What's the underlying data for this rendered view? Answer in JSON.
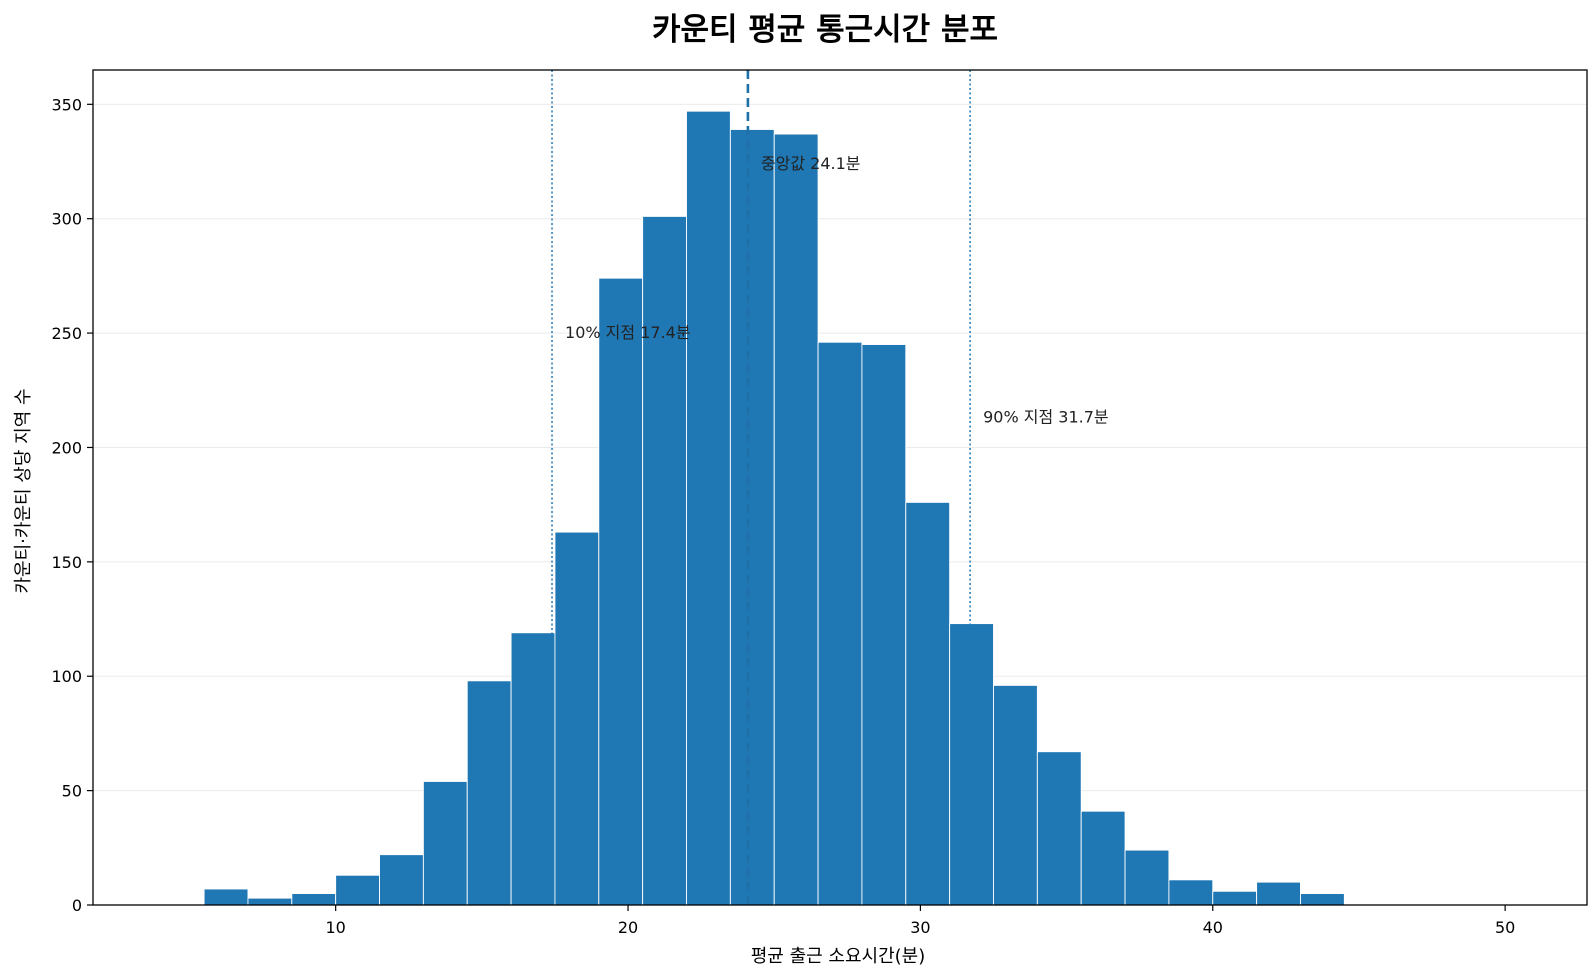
{
  "chart_data": {
    "type": "bar",
    "subtype": "histogram",
    "title": "카운티 평균 통근시간 분포",
    "xlabel": "평균 출근 소요시간(분)",
    "ylabel": "카운티·카운티 상당 지역 수",
    "xlim": [
      1.7,
      52.8
    ],
    "ylim": [
      0,
      365
    ],
    "x_ticks": [
      10,
      20,
      30,
      40,
      50
    ],
    "y_ticks": [
      0,
      50,
      100,
      150,
      200,
      250,
      300,
      350
    ],
    "grid": "horizontal",
    "colors": {
      "bar": "#1f77b4",
      "bar_edge": "#ffffff",
      "median_line": "#1f6fa8",
      "percentile_line": "#1f77b4",
      "grid": "#ebebeb"
    },
    "bins": [
      {
        "x0": 4.0,
        "x1": 5.5,
        "count": 0
      },
      {
        "x0": 5.5,
        "x1": 7.0,
        "count": 7
      },
      {
        "x0": 7.0,
        "x1": 8.5,
        "count": 3
      },
      {
        "x0": 8.5,
        "x1": 10.0,
        "count": 5
      },
      {
        "x0": 10.0,
        "x1": 11.5,
        "count": 13
      },
      {
        "x0": 11.5,
        "x1": 13.0,
        "count": 22
      },
      {
        "x0": 13.0,
        "x1": 14.5,
        "count": 54
      },
      {
        "x0": 14.5,
        "x1": 16.0,
        "count": 98
      },
      {
        "x0": 16.0,
        "x1": 17.5,
        "count": 119
      },
      {
        "x0": 17.5,
        "x1": 19.0,
        "count": 163
      },
      {
        "x0": 19.0,
        "x1": 20.5,
        "count": 274
      },
      {
        "x0": 20.5,
        "x1": 22.0,
        "count": 301
      },
      {
        "x0": 22.0,
        "x1": 23.5,
        "count": 347
      },
      {
        "x0": 23.5,
        "x1": 25.0,
        "count": 339
      },
      {
        "x0": 25.0,
        "x1": 26.5,
        "count": 337
      },
      {
        "x0": 26.5,
        "x1": 28.0,
        "count": 246
      },
      {
        "x0": 28.0,
        "x1": 29.5,
        "count": 245
      },
      {
        "x0": 29.5,
        "x1": 31.0,
        "count": 176
      },
      {
        "x0": 31.0,
        "x1": 32.5,
        "count": 123
      },
      {
        "x0": 32.5,
        "x1": 34.0,
        "count": 96
      },
      {
        "x0": 34.0,
        "x1": 35.5,
        "count": 67
      },
      {
        "x0": 35.5,
        "x1": 37.0,
        "count": 41
      },
      {
        "x0": 37.0,
        "x1": 38.5,
        "count": 24
      },
      {
        "x0": 38.5,
        "x1": 40.0,
        "count": 11
      },
      {
        "x0": 40.0,
        "x1": 41.5,
        "count": 6
      },
      {
        "x0": 41.5,
        "x1": 43.0,
        "count": 10
      },
      {
        "x0": 43.0,
        "x1": 44.5,
        "count": 5
      },
      {
        "x0": 44.5,
        "x1": 46.0,
        "count": 0
      },
      {
        "x0": 46.0,
        "x1": 47.5,
        "count": 0
      },
      {
        "x0": 47.5,
        "x1": 49.0,
        "count": 0
      },
      {
        "x0": 49.0,
        "x1": 50.5,
        "count": 0
      }
    ],
    "reference_lines": [
      {
        "id": "p10",
        "x": 17.4,
        "style": "dotted",
        "label": "10% 지점 17.4분",
        "label_y": 250
      },
      {
        "id": "median",
        "x": 24.1,
        "style": "dashed",
        "label": "중앙값 24.1분",
        "label_y": 324
      },
      {
        "id": "p90",
        "x": 31.7,
        "style": "dotted",
        "label": "90% 지점 31.7분",
        "label_y": 213
      }
    ]
  }
}
